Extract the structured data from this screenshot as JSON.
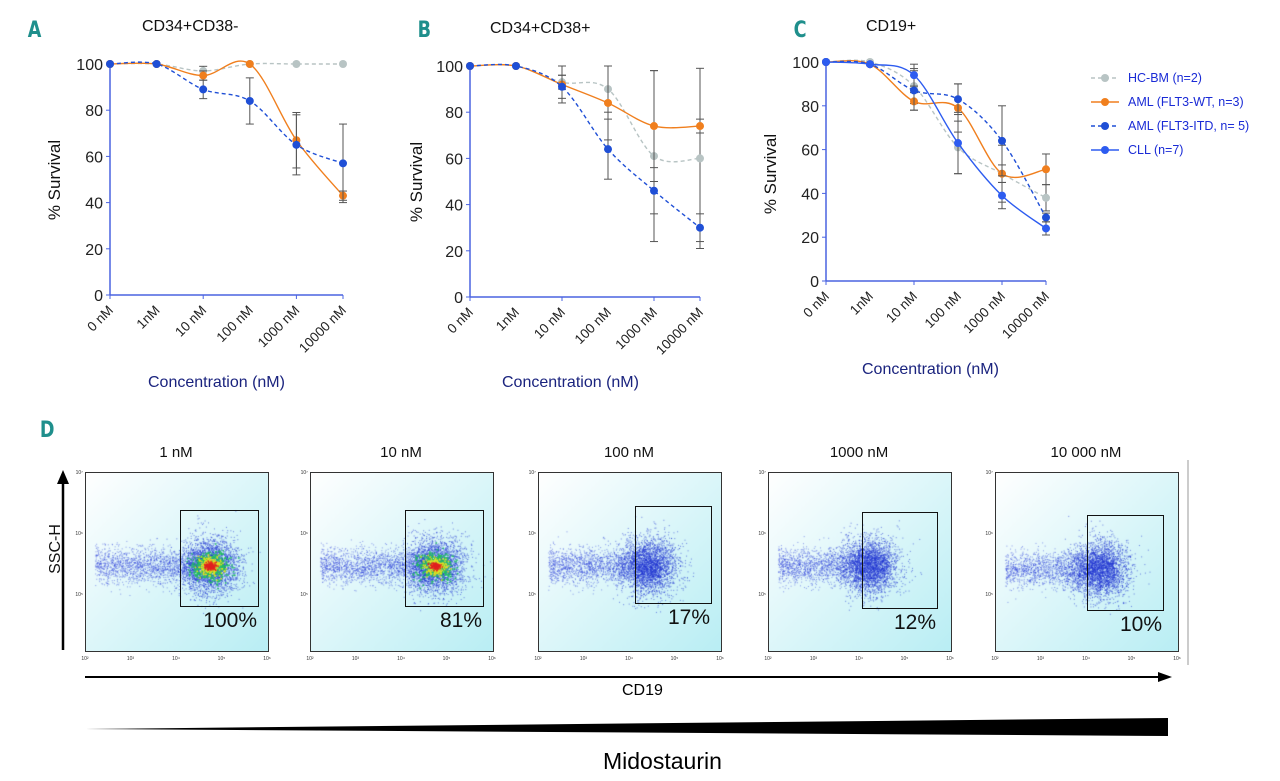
{
  "colors": {
    "hc_bm": "#b8c4c4",
    "aml_wt": "#f07f1e",
    "aml_itd": "#1f4fd6",
    "cll": "#2d5cf0",
    "axis": "#4a63e0",
    "panel_letter": "#1f8f8c"
  },
  "legend": [
    {
      "key": "hc_bm",
      "label": "HC-BM (n=2)",
      "dashed": true
    },
    {
      "key": "aml_wt",
      "label": "AML (FLT3-WT, n=3)",
      "dashed": false
    },
    {
      "key": "aml_itd",
      "label": "AML (FLT3-ITD, n= 5)",
      "dashed": true
    },
    {
      "key": "cll",
      "label": "CLL (n=7)",
      "dashed": false
    }
  ],
  "chart_data": [
    {
      "type": "line",
      "letter": "A",
      "title": "CD34+CD38-",
      "xlabel": "Concentration (nM)",
      "ylabel": "% Survival",
      "categories": [
        "0 nM",
        "1nM",
        "10 nM",
        "100 nM",
        "1000 nM",
        "10000 nM"
      ],
      "ylim": [
        0,
        100
      ],
      "yticks": [
        "0",
        "20",
        "40",
        "60",
        "80",
        "100"
      ],
      "series": [
        {
          "key": "hc_bm",
          "values": [
            100,
            100,
            97,
            100,
            100,
            100
          ],
          "err": [
            0,
            0,
            2,
            0,
            0,
            0
          ]
        },
        {
          "key": "aml_wt",
          "values": [
            100,
            100,
            95,
            100,
            67,
            43
          ],
          "err": [
            0,
            0,
            2,
            0,
            12,
            2
          ]
        },
        {
          "key": "aml_itd",
          "values": [
            100,
            100,
            89,
            84,
            65,
            57
          ],
          "err": [
            0,
            0,
            4,
            10,
            13,
            17
          ]
        }
      ]
    },
    {
      "type": "line",
      "letter": "B",
      "title": "CD34+CD38+",
      "xlabel": "Concentration (nM)",
      "ylabel": "% Survival",
      "categories": [
        "0 nM",
        "1nM",
        "10 nM",
        "100 nM",
        "1000 nM",
        "10000 nM"
      ],
      "ylim": [
        0,
        100
      ],
      "yticks": [
        "0",
        "20",
        "40",
        "60",
        "80",
        "100"
      ],
      "series": [
        {
          "key": "hc_bm",
          "values": [
            100,
            100,
            93,
            90,
            61,
            60
          ],
          "err": [
            0,
            0,
            3,
            10,
            37,
            39
          ]
        },
        {
          "key": "aml_wt",
          "values": [
            100,
            100,
            92,
            84,
            74,
            74
          ],
          "err": [
            0,
            0,
            8,
            16,
            24,
            3
          ]
        },
        {
          "key": "aml_itd",
          "values": [
            100,
            100,
            91,
            64,
            46,
            30
          ],
          "err": [
            0,
            0,
            5,
            13,
            10,
            6
          ]
        }
      ]
    },
    {
      "type": "line",
      "letter": "C",
      "title": "CD19+",
      "xlabel": "Concentration (nM)",
      "ylabel": "% Survival",
      "categories": [
        "0 nM",
        "1nM",
        "10 nM",
        "100 nM",
        "1000 nM",
        "10000 nM"
      ],
      "ylim": [
        0,
        100
      ],
      "yticks": [
        "0",
        "20",
        "40",
        "60",
        "80",
        "100"
      ],
      "series": [
        {
          "key": "hc_bm",
          "values": [
            100,
            100,
            89,
            61,
            49,
            38
          ],
          "err": [
            0,
            0,
            8,
            12,
            13,
            6
          ]
        },
        {
          "key": "aml_wt",
          "values": [
            100,
            99,
            82,
            79,
            49,
            51
          ],
          "err": [
            0,
            0,
            4,
            11,
            4,
            7
          ]
        },
        {
          "key": "aml_itd",
          "values": [
            100,
            99,
            87,
            83,
            64,
            29
          ],
          "err": [
            0,
            0,
            9,
            7,
            16,
            2
          ]
        },
        {
          "key": "cll",
          "values": [
            100,
            99,
            94,
            63,
            39,
            24
          ],
          "err": [
            0,
            0,
            5,
            14,
            6,
            3
          ]
        }
      ]
    }
  ],
  "flow": {
    "letter": "D",
    "ylabel": "SSC-H",
    "xlabel": "CD19",
    "drug_label": "Midostaurin",
    "x_ticks": [
      "10²",
      "10³",
      "10⁴",
      "10⁵",
      "10⁶"
    ],
    "y_ticks": [
      "10⁷",
      "10⁶",
      "10⁵"
    ],
    "plots": [
      {
        "title": "1 nM",
        "gate_percent": "100%"
      },
      {
        "title": "10 nM",
        "gate_percent": "81%"
      },
      {
        "title": "100 nM",
        "gate_percent": "17%"
      },
      {
        "title": "1000 nM",
        "gate_percent": "12%"
      },
      {
        "title": "10 000 nM",
        "gate_percent": "10%"
      }
    ]
  }
}
